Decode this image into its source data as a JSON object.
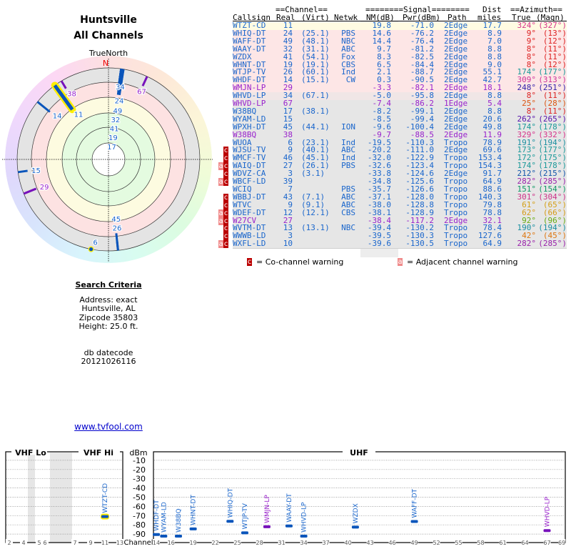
{
  "header": {
    "location": "Huntsville",
    "subtitle": "All Channels"
  },
  "polar": {
    "north_label": "TrueNorth",
    "n_marker": "N"
  },
  "search_criteria": {
    "heading": "Search Criteria",
    "lines": [
      "Address: exact",
      "Huntsville, AL",
      "Zipcode 35803",
      "Height: 25.0 ft."
    ],
    "datecode_label": "db datecode",
    "datecode": "20121026116"
  },
  "link": "www.tvfool.com",
  "table": {
    "group_headers": {
      "channel": "==Channel==",
      "signal": "========Signal========",
      "dist": "Dist",
      "azimuth": "==Azimuth=="
    },
    "columns": {
      "callsign": "Callsign",
      "real": "Real",
      "virt": "(Virt)",
      "netwk": "Netwk",
      "nm": "NM(dB)",
      "pwr": "Pwr(dBm)",
      "path": "Path",
      "dist": "miles",
      "true": "True",
      "magn": "(Magn)"
    },
    "rows": [
      {
        "call": "WTZT-CD",
        "real": "11",
        "virt": "",
        "net": "",
        "nm": "19.8",
        "pwr": "-71.0",
        "path": "2Edge",
        "dist": "17.7",
        "az": "324°",
        "magn": "(327°)",
        "lp": false,
        "warn": "",
        "bg": "#fffbe2",
        "azc": "#d6338a"
      },
      {
        "call": "WHIQ-DT",
        "real": "24",
        "virt": "(25.1)",
        "net": "PBS",
        "nm": "14.6",
        "pwr": "-76.2",
        "path": "2Edge",
        "dist": "8.9",
        "az": "9°",
        "magn": "(13°)",
        "lp": false,
        "warn": "",
        "bg": "#fde6e6",
        "azc": "#dd2222"
      },
      {
        "call": "WAFF-DT",
        "real": "49",
        "virt": "(48.1)",
        "net": "NBC",
        "nm": "14.4",
        "pwr": "-76.4",
        "path": "2Edge",
        "dist": "7.0",
        "az": "9°",
        "magn": "(12°)",
        "lp": false,
        "warn": "",
        "bg": "#fde6e6",
        "azc": "#dd2222"
      },
      {
        "call": "WAAY-DT",
        "real": "32",
        "virt": "(31.1)",
        "net": "ABC",
        "nm": "9.7",
        "pwr": "-81.2",
        "path": "2Edge",
        "dist": "8.8",
        "az": "8°",
        "magn": "(11°)",
        "lp": false,
        "warn": "",
        "bg": "#fde6e6",
        "azc": "#dd2222"
      },
      {
        "call": "WZDX",
        "real": "41",
        "virt": "(54.1)",
        "net": "Fox",
        "nm": "8.3",
        "pwr": "-82.5",
        "path": "2Edge",
        "dist": "8.8",
        "az": "8°",
        "magn": "(11°)",
        "lp": false,
        "warn": "",
        "bg": "#fde6e6",
        "azc": "#dd2222"
      },
      {
        "call": "WHNT-DT",
        "real": "19",
        "virt": "(19.1)",
        "net": "CBS",
        "nm": "6.5",
        "pwr": "-84.4",
        "path": "2Edge",
        "dist": "9.0",
        "az": "8°",
        "magn": "(12°)",
        "lp": false,
        "warn": "",
        "bg": "#fde6e6",
        "azc": "#dd2222"
      },
      {
        "call": "WTJP-TV",
        "real": "26",
        "virt": "(60.1)",
        "net": "Ind",
        "nm": "2.1",
        "pwr": "-88.7",
        "path": "2Edge",
        "dist": "55.1",
        "az": "174°",
        "magn": "(177°)",
        "lp": false,
        "warn": "",
        "bg": "#fde6e6",
        "azc": "#1a9999"
      },
      {
        "call": "WHDF-DT",
        "real": "14",
        "virt": "(15.1)",
        "net": "CW",
        "nm": "0.3",
        "pwr": "-90.5",
        "path": "2Edge",
        "dist": "42.7",
        "az": "309°",
        "magn": "(313°)",
        "lp": false,
        "warn": "",
        "bg": "#fde6e6",
        "azc": "#cc3399"
      },
      {
        "call": "WMJN-LP",
        "real": "29",
        "virt": "",
        "net": "",
        "nm": "-3.3",
        "pwr": "-82.1",
        "path": "2Edge",
        "dist": "18.1",
        "az": "248°",
        "magn": "(251°)",
        "lp": true,
        "warn": "",
        "bg": "#fde6e6",
        "azc": "#3322aa"
      },
      {
        "call": "WHVD-LP",
        "real": "34",
        "virt": "(67.1)",
        "net": "",
        "nm": "-5.0",
        "pwr": "-95.8",
        "path": "2Edge",
        "dist": "8.8",
        "az": "8°",
        "magn": "(11°)",
        "lp": false,
        "warn": "",
        "bg": "#f0e6e6",
        "azc": "#dd2222"
      },
      {
        "call": "WHVD-LP",
        "real": "67",
        "virt": "",
        "net": "",
        "nm": "-7.4",
        "pwr": "-86.2",
        "path": "1Edge",
        "dist": "5.4",
        "az": "25°",
        "magn": "(28°)",
        "lp": true,
        "warn": "",
        "bg": "#e6e6e6",
        "azc": "#dd5511"
      },
      {
        "call": "W38BQ",
        "real": "17",
        "virt": "(38.1)",
        "net": "",
        "nm": "-8.2",
        "pwr": "-99.1",
        "path": "2Edge",
        "dist": "8.8",
        "az": "8°",
        "magn": "(11°)",
        "lp": false,
        "warn": "",
        "bg": "#e6e6e6",
        "azc": "#dd2222"
      },
      {
        "call": "WYAM-LD",
        "real": "15",
        "virt": "",
        "net": "",
        "nm": "-8.5",
        "pwr": "-99.4",
        "path": "2Edge",
        "dist": "20.6",
        "az": "262°",
        "magn": "(265°)",
        "lp": false,
        "warn": "",
        "bg": "#e6e6e6",
        "azc": "#5511aa"
      },
      {
        "call": "WPXH-DT",
        "real": "45",
        "virt": "(44.1)",
        "net": "ION",
        "nm": "-9.6",
        "pwr": "-100.4",
        "path": "2Edge",
        "dist": "49.8",
        "az": "174°",
        "magn": "(178°)",
        "lp": false,
        "warn": "",
        "bg": "#e6e6e6",
        "azc": "#1a9999"
      },
      {
        "call": "W38BQ",
        "real": "38",
        "virt": "",
        "net": "",
        "nm": "-9.7",
        "pwr": "-88.5",
        "path": "2Edge",
        "dist": "11.9",
        "az": "329°",
        "magn": "(332°)",
        "lp": true,
        "warn": "",
        "bg": "#e6e6e6",
        "azc": "#d6338a"
      },
      {
        "call": "WUOA",
        "real": "6",
        "virt": "(23.1)",
        "net": "Ind",
        "nm": "-19.5",
        "pwr": "-110.3",
        "path": "Tropo",
        "dist": "78.9",
        "az": "191°",
        "magn": "(194°)",
        "lp": false,
        "warn": "",
        "bg": "#e6e6e6",
        "azc": "#1a8fa0"
      },
      {
        "call": "WJSU-TV",
        "real": "9",
        "virt": "(40.1)",
        "net": "ABC",
        "nm": "-20.2",
        "pwr": "-111.0",
        "path": "2Edge",
        "dist": "69.6",
        "az": "173°",
        "magn": "(177°)",
        "lp": false,
        "warn": "c",
        "bg": "#e6e6e6",
        "azc": "#1a9999"
      },
      {
        "call": "WMCF-TV",
        "real": "46",
        "virt": "(45.1)",
        "net": "Ind",
        "nm": "-32.0",
        "pwr": "-122.9",
        "path": "Tropo",
        "dist": "153.4",
        "az": "172°",
        "magn": "(175°)",
        "lp": false,
        "warn": "c",
        "bg": "#e6e6e6",
        "azc": "#1a9999"
      },
      {
        "call": "WAIQ-DT",
        "real": "27",
        "virt": "(26.1)",
        "net": "PBS",
        "nm": "-32.6",
        "pwr": "-123.4",
        "path": "Tropo",
        "dist": "154.3",
        "az": "174°",
        "magn": "(178°)",
        "lp": false,
        "warn": "ac",
        "bg": "#e6e6e6",
        "azc": "#1a9999"
      },
      {
        "call": "WDVZ-CA",
        "real": "3",
        "virt": "(3.1)",
        "net": "",
        "nm": "-33.8",
        "pwr": "-124.6",
        "path": "2Edge",
        "dist": "91.7",
        "az": "212°",
        "magn": "(215°)",
        "lp": false,
        "warn": "c",
        "bg": "#e6e6e6",
        "azc": "#1155aa"
      },
      {
        "call": "WBCF-LD",
        "real": "39",
        "virt": "",
        "net": "",
        "nm": "-34.8",
        "pwr": "-125.6",
        "path": "Tropo",
        "dist": "64.9",
        "az": "282°",
        "magn": "(285°)",
        "lp": false,
        "warn": "ac",
        "bg": "#e6e6e6",
        "azc": "#9922aa"
      },
      {
        "call": "WCIQ",
        "real": "7",
        "virt": "",
        "net": "PBS",
        "nm": "-35.7",
        "pwr": "-126.6",
        "path": "Tropo",
        "dist": "88.6",
        "az": "151°",
        "magn": "(154°)",
        "lp": false,
        "warn": "",
        "bg": "#e6e6e6",
        "azc": "#119966"
      },
      {
        "call": "WBBJ-DT",
        "real": "43",
        "virt": "(7.1)",
        "net": "ABC",
        "nm": "-37.1",
        "pwr": "-128.0",
        "path": "Tropo",
        "dist": "140.3",
        "az": "301°",
        "magn": "(304°)",
        "lp": false,
        "warn": "c",
        "bg": "#e6e6e6",
        "azc": "#cc3388"
      },
      {
        "call": "WTVC",
        "real": "9",
        "virt": "(9.1)",
        "net": "ABC",
        "nm": "-38.0",
        "pwr": "-128.8",
        "path": "Tropo",
        "dist": "79.8",
        "az": "61°",
        "magn": "(65°)",
        "lp": false,
        "warn": "c",
        "bg": "#e6e6e6",
        "azc": "#d4a017"
      },
      {
        "call": "WDEF-DT",
        "real": "12",
        "virt": "(12.1)",
        "net": "CBS",
        "nm": "-38.1",
        "pwr": "-128.9",
        "path": "Tropo",
        "dist": "78.8",
        "az": "62°",
        "magn": "(66°)",
        "lp": false,
        "warn": "ac",
        "bg": "#e6e6e6",
        "azc": "#d49a17"
      },
      {
        "call": "W27CV",
        "real": "27",
        "virt": "",
        "net": "",
        "nm": "-38.4",
        "pwr": "-117.2",
        "path": "2Edge",
        "dist": "32.1",
        "az": "92°",
        "magn": "(96°)",
        "lp": true,
        "warn": "ac",
        "bg": "#e6e6e6",
        "azc": "#66aa11"
      },
      {
        "call": "WVTM-DT",
        "real": "13",
        "virt": "(13.1)",
        "net": "NBC",
        "nm": "-39.4",
        "pwr": "-130.2",
        "path": "Tropo",
        "dist": "78.4",
        "az": "190°",
        "magn": "(194°)",
        "lp": false,
        "warn": "c",
        "bg": "#e6e6e6",
        "azc": "#1a8fa0"
      },
      {
        "call": "WWWB-LD",
        "real": "3",
        "virt": "",
        "net": "",
        "nm": "-39.5",
        "pwr": "-130.3",
        "path": "Tropo",
        "dist": "127.6",
        "az": "42°",
        "magn": "(45°)",
        "lp": false,
        "warn": "c",
        "bg": "#e6e6e6",
        "azc": "#dd7711"
      },
      {
        "call": "WXFL-LD",
        "real": "10",
        "virt": "",
        "net": "",
        "nm": "-39.6",
        "pwr": "-130.5",
        "path": "Tropo",
        "dist": "64.9",
        "az": "282°",
        "magn": "(285°)",
        "lp": false,
        "warn": "ac",
        "bg": "#e6e6e6",
        "azc": "#9922aa"
      }
    ],
    "legend": {
      "co_symbol": "c",
      "co_text": "= Co-channel warning",
      "adj_symbol": "a",
      "adj_text": "= Adjacent channel warning"
    }
  },
  "colors": {
    "full_power": "#1a66cc",
    "low_power": "#9922cc",
    "marker_full": "#0a55bb",
    "marker_lp": "#7711bb",
    "highlight": "#ffee00"
  },
  "spectrum": {
    "vhf_lo_label": "VHF Lo",
    "vhf_hi_label": "VHF Hi",
    "uhf_label": "UHF",
    "unit_label": "dBm",
    "channel_label": "Channel",
    "dbm_ticks": [
      "-10",
      "-20",
      "-30",
      "-40",
      "-50",
      "-60",
      "-70",
      "-80",
      "-90"
    ],
    "vhf_channel_ticks": [
      "2",
      "4",
      "5",
      "6",
      "7",
      "9",
      "11",
      "13"
    ],
    "uhf_channel_ticks": [
      "14",
      "16",
      "19",
      "22",
      "25",
      "28",
      "31",
      "34",
      "37",
      "40",
      "43",
      "46",
      "49",
      "52",
      "55",
      "58",
      "61",
      "64",
      "67",
      "69"
    ],
    "markers": [
      {
        "call": "WTZT-CD",
        "ch": 11,
        "pwr": -71.0,
        "lp": false,
        "hl": true
      },
      {
        "call": "WHDF-DT",
        "ch": 14,
        "pwr": -90.5,
        "lp": false
      },
      {
        "call": "WYAM-LD",
        "ch": 15,
        "pwr": -99.4,
        "lp": false
      },
      {
        "call": "W38BQ",
        "ch": 17,
        "pwr": -99.1,
        "lp": false
      },
      {
        "call": "WHNT-DT",
        "ch": 19,
        "pwr": -84.4,
        "lp": false
      },
      {
        "call": "WHIQ-DT",
        "ch": 24,
        "pwr": -76.2,
        "lp": false
      },
      {
        "call": "WTJP-TV",
        "ch": 26,
        "pwr": -88.7,
        "lp": false
      },
      {
        "call": "WMJN-LP",
        "ch": 29,
        "pwr": -82.1,
        "lp": true
      },
      {
        "call": "WAAY-DT",
        "ch": 32,
        "pwr": -81.2,
        "lp": false
      },
      {
        "call": "WHVD-LP",
        "ch": 34,
        "pwr": -95.8,
        "lp": false
      },
      {
        "call": "WZDX",
        "ch": 41,
        "pwr": -82.5,
        "lp": false
      },
      {
        "call": "WAFF-DT",
        "ch": 49,
        "pwr": -76.4,
        "lp": false
      },
      {
        "call": "WHVD-LP",
        "ch": 67,
        "pwr": -86.2,
        "lp": true
      }
    ]
  }
}
